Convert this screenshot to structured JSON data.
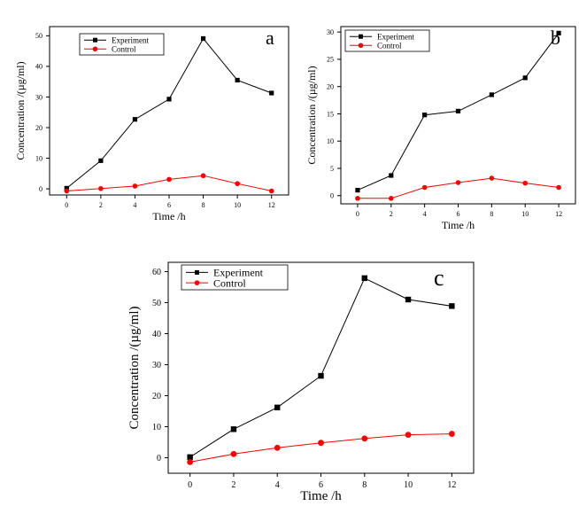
{
  "colors": {
    "experiment": "#000000",
    "control": "#ff0000",
    "axis": "#000000"
  },
  "chart_data": [
    {
      "type": "line",
      "panel_label": "a",
      "xlabel": "Time /h",
      "ylabel": "Concentration /(µg/ml)",
      "xlim": [
        -1,
        13
      ],
      "ylim": [
        -2,
        53
      ],
      "xticks": [
        0,
        2,
        4,
        6,
        8,
        10,
        12
      ],
      "yticks": [
        0,
        10,
        20,
        30,
        40,
        50
      ],
      "legend_position": "top-left",
      "series": [
        {
          "name": "Experiment",
          "marker": "square",
          "x": [
            0,
            2,
            4,
            6,
            8,
            10,
            12
          ],
          "values": [
            0.2,
            9.2,
            22.7,
            29.3,
            49.1,
            35.5,
            31.3
          ]
        },
        {
          "name": "Control",
          "marker": "circle",
          "x": [
            0,
            2,
            4,
            6,
            8,
            10,
            12
          ],
          "values": [
            -0.7,
            0.1,
            0.9,
            3.1,
            4.3,
            1.7,
            -0.7
          ]
        }
      ]
    },
    {
      "type": "line",
      "panel_label": "b",
      "xlabel": "Time /h",
      "ylabel": "Concentration /(µg/ml)",
      "xlim": [
        -1,
        13
      ],
      "ylim": [
        -1.5,
        31
      ],
      "xticks": [
        0,
        2,
        4,
        6,
        8,
        10,
        12
      ],
      "yticks": [
        0,
        5,
        10,
        15,
        20,
        25,
        30
      ],
      "legend_position": "top-left",
      "series": [
        {
          "name": "Experiment",
          "marker": "square",
          "x": [
            0,
            2,
            4,
            6,
            8,
            10,
            12
          ],
          "values": [
            1.0,
            3.7,
            14.8,
            15.5,
            18.5,
            21.6,
            29.8
          ]
        },
        {
          "name": "Control",
          "marker": "circle",
          "x": [
            0,
            2,
            4,
            6,
            8,
            10,
            12
          ],
          "values": [
            -0.5,
            -0.5,
            1.5,
            2.4,
            3.2,
            2.3,
            1.5
          ]
        }
      ]
    },
    {
      "type": "line",
      "panel_label": "c",
      "xlabel": "Time /h",
      "ylabel": "Concentration /(µg/ml)",
      "xlim": [
        -1,
        13
      ],
      "ylim": [
        -5,
        63
      ],
      "xticks": [
        0,
        2,
        4,
        6,
        8,
        10,
        12
      ],
      "yticks": [
        0,
        10,
        20,
        30,
        40,
        50,
        60
      ],
      "legend_position": "top-left",
      "series": [
        {
          "name": "Experiment",
          "marker": "square",
          "x": [
            0,
            2,
            4,
            6,
            8,
            10,
            12
          ],
          "values": [
            0.2,
            9.2,
            16.2,
            26.4,
            57.9,
            51.0,
            48.9
          ]
        },
        {
          "name": "Control",
          "marker": "circle",
          "x": [
            0,
            2,
            4,
            6,
            8,
            10,
            12
          ],
          "values": [
            -1.4,
            1.2,
            3.2,
            4.8,
            6.2,
            7.4,
            7.7
          ]
        }
      ]
    }
  ]
}
